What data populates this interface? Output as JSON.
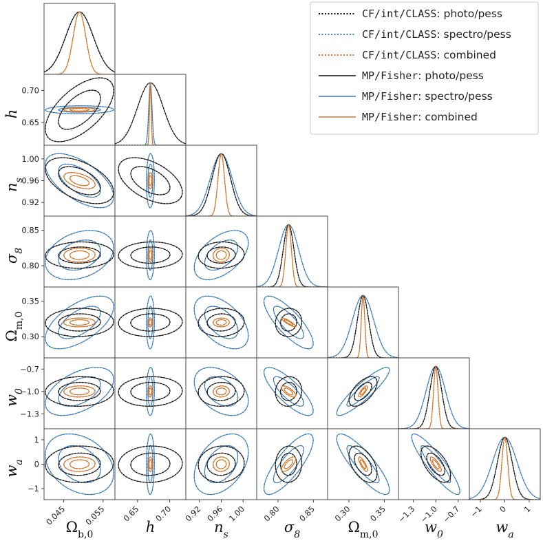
{
  "chart_data": {
    "type": "triangle",
    "parameters": [
      {
        "label": "Ω_b,0",
        "display": "Ωb,0",
        "ticks": [
          0.045,
          0.055
        ],
        "tick_labels": [
          "0.045",
          "0.055"
        ],
        "fid": 0.049
      },
      {
        "label": "h",
        "display": "h",
        "ticks": [
          0.65,
          0.7
        ],
        "tick_labels": [
          "0.65",
          "0.70"
        ],
        "fid": 0.67
      },
      {
        "label": "n_s",
        "display": "ns",
        "ticks": [
          0.92,
          0.96,
          1.0
        ],
        "tick_labels": [
          "0.92",
          "0.96",
          "1.00"
        ],
        "fid": 0.96
      },
      {
        "label": "σ_8",
        "display": "σ8",
        "ticks": [
          0.8,
          0.85
        ],
        "tick_labels": [
          "0.80",
          "0.85"
        ],
        "fid": 0.815
      },
      {
        "label": "Ω_m,0",
        "display": "Ωm,0",
        "ticks": [
          0.3,
          0.35
        ],
        "tick_labels": [
          "0.30",
          "0.35"
        ],
        "fid": 0.32
      },
      {
        "label": "w_0",
        "display": "w0",
        "ticks": [
          -1.3,
          -1.0,
          -0.7
        ],
        "tick_labels": [
          "−1.3",
          "−1.0",
          "−0.7"
        ],
        "fid": -1.0
      },
      {
        "label": "w_a",
        "display": "wa",
        "ticks": [
          -1,
          0,
          1
        ],
        "tick_labels": [
          "−1",
          "0",
          "1"
        ],
        "fid": 0.0
      }
    ],
    "y_tick_labels": [
      null,
      [
        "0.65",
        "0.70"
      ],
      [
        "0.92",
        "0.96",
        "1.00"
      ],
      [
        "0.80",
        "0.85"
      ],
      [
        "0.30",
        "0.35"
      ],
      [
        "−1.3",
        "−1.0",
        "−0.7"
      ],
      [
        "−1",
        "0",
        "1"
      ]
    ],
    "legend": [
      {
        "code": "CF/int/CLASS",
        "text": ": photo/pess",
        "color": "#111111",
        "style": "dotted"
      },
      {
        "code": "CF/int/CLASS",
        "text": ": spectro/pess",
        "color": "#3a7fc0",
        "style": "dotted"
      },
      {
        "code": "CF/int/CLASS",
        "text": ": combined",
        "color": "#e07020",
        "style": "dotted"
      },
      {
        "code": "MP/Fisher",
        "text": ": photo/pess",
        "color": "#111111",
        "style": "solid"
      },
      {
        "code": "MP/Fisher",
        "text": ": spectro/pess",
        "color": "#3a7fc0",
        "style": "solid"
      },
      {
        "code": "MP/Fisher",
        "text": ": combined",
        "color": "#c87830",
        "style": "solid"
      }
    ],
    "sigma": {
      "photo": [
        0.0035,
        0.02,
        0.017,
        0.0075,
        0.008,
        0.08,
        0.3
      ],
      "spectro": [
        0.0035,
        0.0025,
        0.02,
        0.014,
        0.015,
        0.13,
        0.5
      ],
      "combined": [
        0.0016,
        0.0013,
        0.006,
        0.004,
        0.0025,
        0.03,
        0.12
      ]
    },
    "correlations": {
      "photo": {
        "1_0": 0.6,
        "2_0": -0.5,
        "2_1": -0.5,
        "5_4": 0.6,
        "6_5": -0.6,
        "6_4": -0.5
      },
      "spectro": {
        "2_0": -0.6,
        "3_0": 0.3,
        "3_2": 0.5,
        "4_0": 0.6,
        "4_2": -0.5,
        "4_3": -0.8,
        "5_0": 0.5,
        "5_2": -0.4,
        "5_3": -0.8,
        "5_4": 0.9,
        "6_0": -0.3,
        "6_2": 0.4,
        "6_3": 0.8,
        "6_4": -0.85,
        "6_5": -0.9
      },
      "combined": {
        "2_0": -0.5,
        "4_3": -0.9,
        "5_3": -0.7,
        "5_4": 0.8,
        "6_3": 0.7,
        "6_4": -0.8,
        "6_5": -0.8
      }
    }
  }
}
